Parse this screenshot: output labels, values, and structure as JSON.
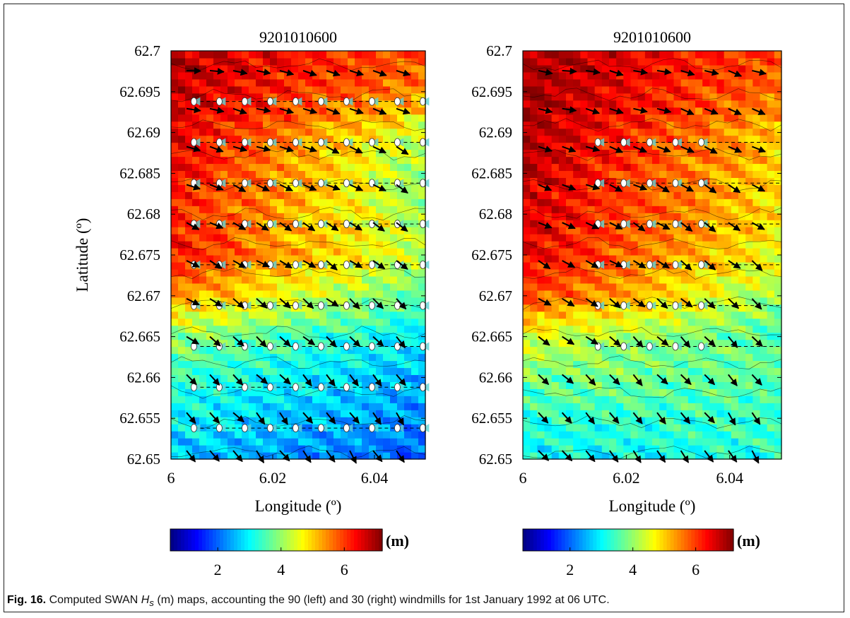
{
  "figure": {
    "caption_label": "Fig. 16.",
    "caption_pre": "Computed SWAN",
    "caption_symbol": "H",
    "caption_sub": "s",
    "caption_post": "(m) maps, accounting the 90 (left) and 30 (right) windmills for 1st January 1992 at 06 UTC."
  },
  "chart_data": [
    {
      "type": "heatmap",
      "title": "9201010600",
      "xlabel": "Longitude (º)",
      "ylabel": "Latitude (º)",
      "xlim": [
        6.0,
        6.05
      ],
      "ylim": [
        62.65,
        62.7
      ],
      "xticks": [
        "6",
        "6.02",
        "6.04"
      ],
      "xtick_values": [
        6.0,
        6.02,
        6.04
      ],
      "yticks": [
        "62.65",
        "62.655",
        "62.66",
        "62.665",
        "62.67",
        "62.675",
        "62.68",
        "62.685",
        "62.69",
        "62.695",
        "62.7"
      ],
      "ytick_values": [
        62.65,
        62.655,
        62.66,
        62.665,
        62.67,
        62.675,
        62.68,
        62.685,
        62.69,
        62.695,
        62.7
      ],
      "colorbar": {
        "label": "(m)",
        "ticks": [
          "2",
          "4",
          "6"
        ],
        "tick_values": [
          2,
          4,
          6
        ],
        "range": [
          0.5,
          7.2
        ]
      },
      "colormap": [
        "#00007f",
        "#0000ff",
        "#0080ff",
        "#00ffff",
        "#80ff80",
        "#ffff00",
        "#ff8000",
        "#ff0000",
        "#7f0000"
      ],
      "windmill_count": 90,
      "windmill_rows": [
        62.6538,
        62.6588,
        62.6638,
        62.6688,
        62.6738,
        62.6788,
        62.6838,
        62.6888,
        62.6938
      ],
      "windmill_cols": [
        6.0045,
        6.0095,
        6.0145,
        6.0195,
        6.0245,
        6.0295,
        6.0345,
        6.0395,
        6.0445,
        6.0495
      ],
      "hs_by_latitude": [
        {
          "lat": 62.65,
          "w": 2.6,
          "e": 1.9
        },
        {
          "lat": 62.655,
          "w": 3.0,
          "e": 2.3
        },
        {
          "lat": 62.66,
          "w": 3.4,
          "e": 2.5
        },
        {
          "lat": 62.665,
          "w": 4.0,
          "e": 2.9
        },
        {
          "lat": 62.67,
          "w": 5.4,
          "e": 3.6
        },
        {
          "lat": 62.675,
          "w": 6.3,
          "e": 4.2
        },
        {
          "lat": 62.68,
          "w": 6.2,
          "e": 4.1
        },
        {
          "lat": 62.685,
          "w": 6.4,
          "e": 4.0
        },
        {
          "lat": 62.69,
          "w": 6.6,
          "e": 4.3
        },
        {
          "lat": 62.695,
          "w": 6.8,
          "e": 5.4
        },
        {
          "lat": 62.7,
          "w": 6.9,
          "e": 5.7
        }
      ]
    },
    {
      "type": "heatmap",
      "title": "9201010600",
      "xlabel": "Longitude (º)",
      "ylabel": "",
      "xlim": [
        6.0,
        6.05
      ],
      "ylim": [
        62.65,
        62.7
      ],
      "xticks": [
        "6",
        "6.02",
        "6.04"
      ],
      "xtick_values": [
        6.0,
        6.02,
        6.04
      ],
      "yticks": [
        "62.65",
        "62.655",
        "62.66",
        "62.665",
        "62.67",
        "62.675",
        "62.68",
        "62.685",
        "62.69",
        "62.695",
        "62.7"
      ],
      "ytick_values": [
        62.65,
        62.655,
        62.66,
        62.665,
        62.67,
        62.675,
        62.68,
        62.685,
        62.69,
        62.695,
        62.7
      ],
      "colorbar": {
        "label": "(m)",
        "ticks": [
          "2",
          "4",
          "6"
        ],
        "tick_values": [
          2,
          4,
          6
        ],
        "range": [
          0.5,
          7.2
        ]
      },
      "colormap": [
        "#00007f",
        "#0000ff",
        "#0080ff",
        "#00ffff",
        "#80ff80",
        "#ffff00",
        "#ff8000",
        "#ff0000",
        "#7f0000"
      ],
      "windmill_count": 30,
      "windmill_rows": [
        62.6638,
        62.6688,
        62.6738,
        62.6788,
        62.6838,
        62.6888
      ],
      "windmill_cols": [
        6.0145,
        6.0195,
        6.0245,
        6.0295,
        6.0345
      ],
      "hs_by_latitude": [
        {
          "lat": 62.65,
          "w": 3.0,
          "e": 3.2
        },
        {
          "lat": 62.655,
          "w": 3.3,
          "e": 3.4
        },
        {
          "lat": 62.66,
          "w": 3.8,
          "e": 3.6
        },
        {
          "lat": 62.665,
          "w": 4.5,
          "e": 3.5
        },
        {
          "lat": 62.67,
          "w": 6.0,
          "e": 4.0
        },
        {
          "lat": 62.675,
          "w": 6.5,
          "e": 4.6
        },
        {
          "lat": 62.68,
          "w": 6.6,
          "e": 4.8
        },
        {
          "lat": 62.685,
          "w": 6.8,
          "e": 4.9
        },
        {
          "lat": 62.69,
          "w": 6.9,
          "e": 5.0
        },
        {
          "lat": 62.695,
          "w": 7.0,
          "e": 5.6
        },
        {
          "lat": 62.7,
          "w": 7.0,
          "e": 5.9
        }
      ]
    }
  ]
}
